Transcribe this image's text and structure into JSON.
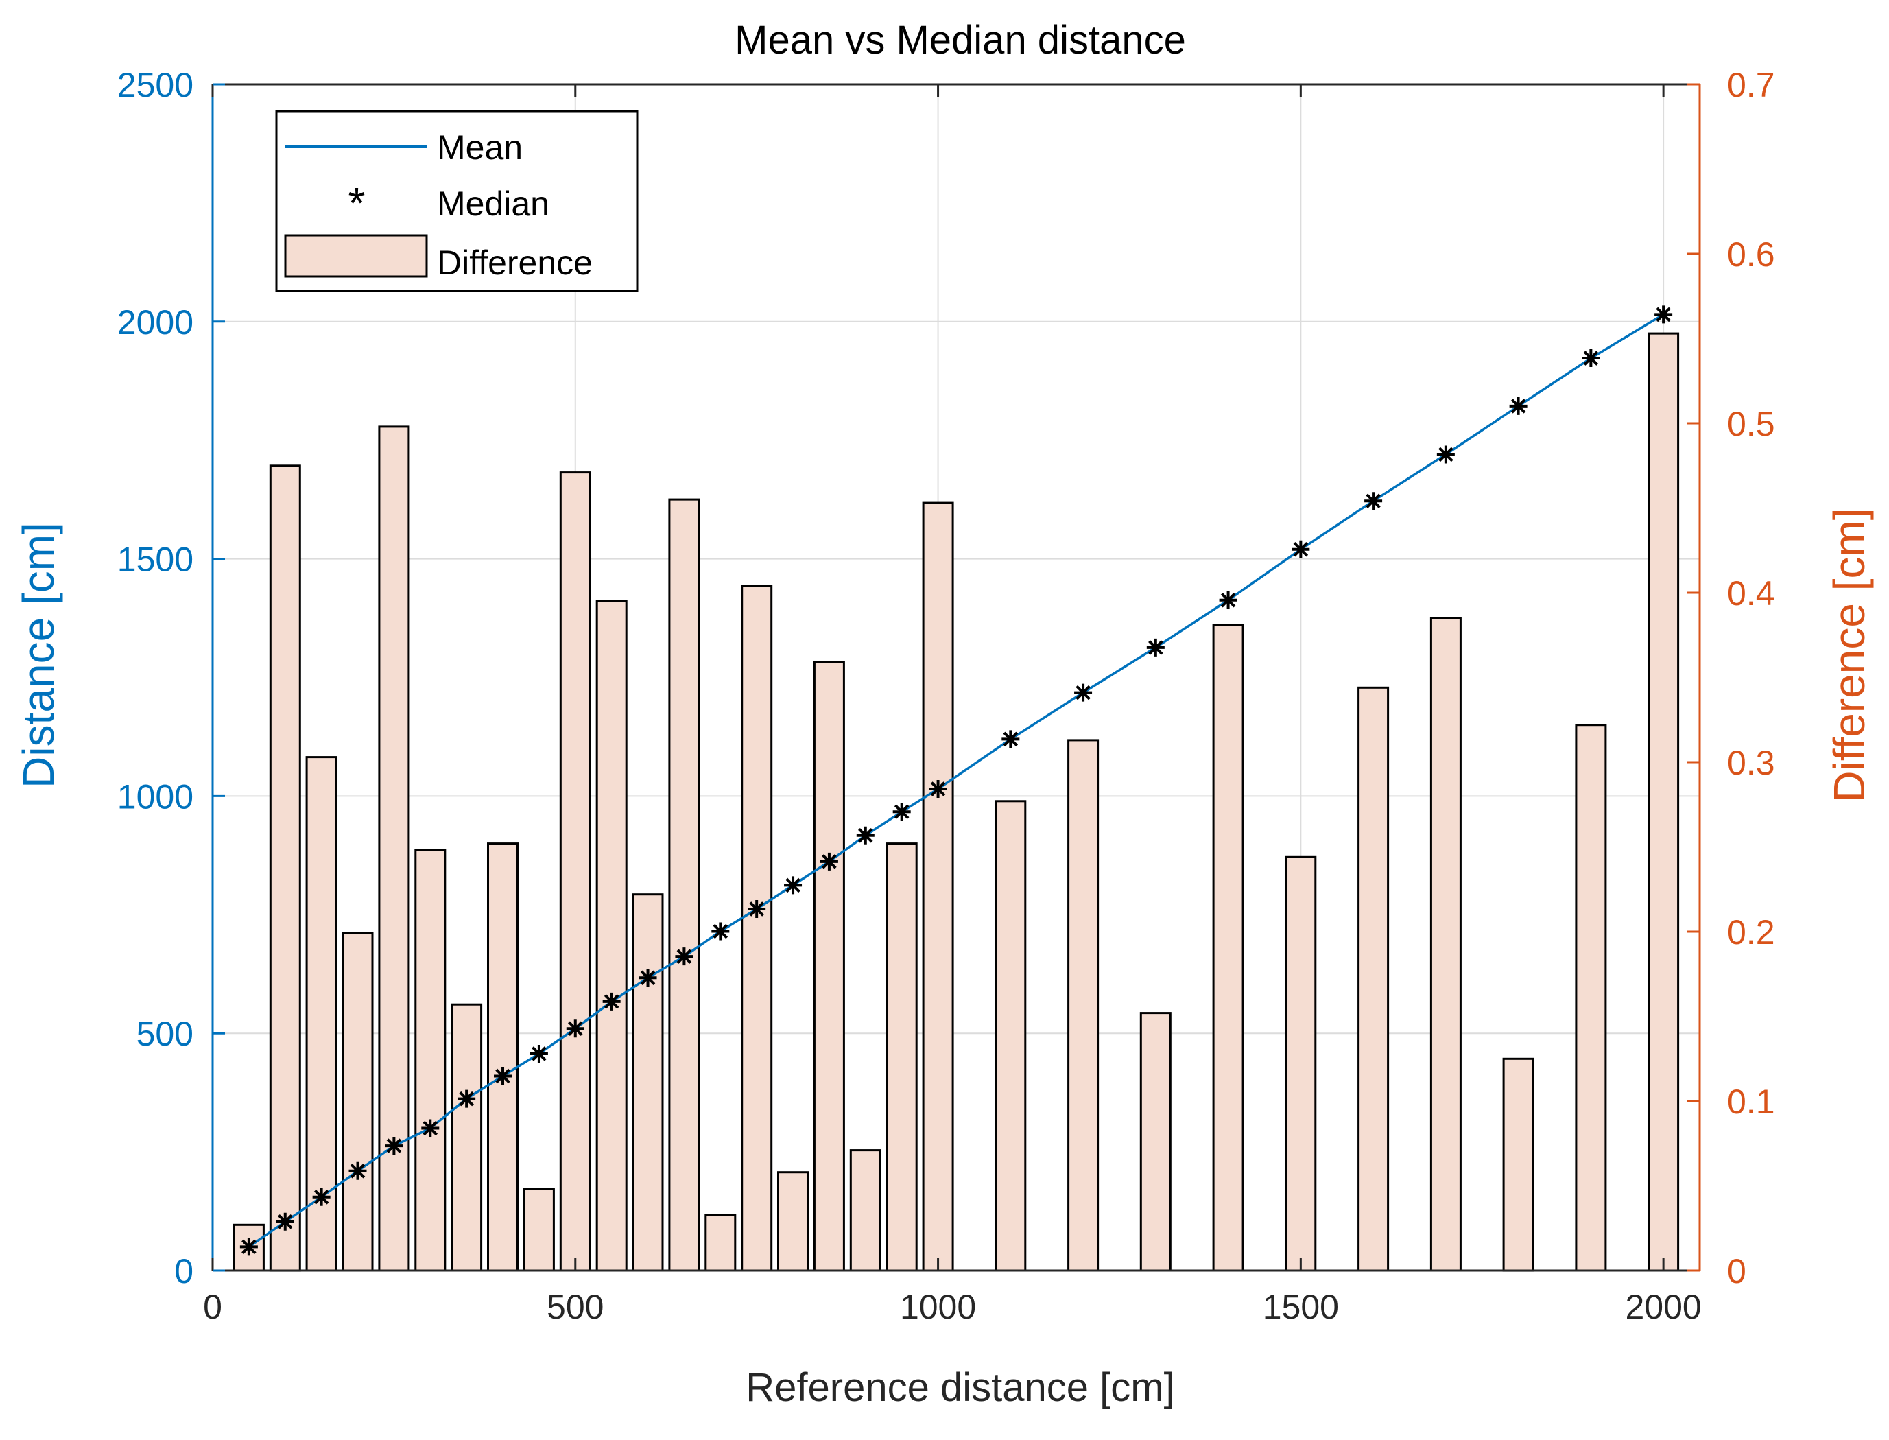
{
  "chart_data": {
    "type": "bar+line",
    "title": "Mean vs Median distance",
    "xlabel": "Reference distance [cm]",
    "ylabel_left": "Distance [cm]",
    "ylabel_right": "Difference [cm]",
    "xlim": [
      0,
      2050
    ],
    "ylim_left": [
      0,
      2500
    ],
    "ylim_right": [
      0,
      0.7
    ],
    "x_ticks": [
      0,
      500,
      1000,
      1500,
      2000
    ],
    "y_ticks_left": [
      0,
      500,
      1000,
      1500,
      2000,
      2500
    ],
    "y_ticks_right": [
      0,
      0.1,
      0.2,
      0.3,
      0.4,
      0.5,
      0.6,
      0.7
    ],
    "x_tick_labels": [
      "0",
      "500",
      "1000",
      "1500",
      "2000"
    ],
    "y_tick_labels_left": [
      "0",
      "500",
      "1000",
      "1500",
      "2000",
      "2500"
    ],
    "y_tick_labels_right": [
      "0",
      "0.1",
      "0.2",
      "0.3",
      "0.4",
      "0.5",
      "0.6",
      "0.7"
    ],
    "grid": true,
    "legend_position": "top-left",
    "legend": [
      "Mean",
      "Median",
      "Difference"
    ],
    "x": [
      50,
      100,
      150,
      200,
      250,
      300,
      350,
      400,
      450,
      500,
      550,
      600,
      650,
      700,
      750,
      800,
      850,
      900,
      950,
      1000,
      1100,
      1200,
      1300,
      1400,
      1500,
      1600,
      1700,
      1800,
      1900,
      2000
    ],
    "series": [
      {
        "name": "Mean",
        "axis": "left",
        "kind": "line",
        "values": [
          50,
          103,
          155,
          210,
          263,
          300,
          362,
          410,
          457,
          510,
          567,
          617,
          662,
          715,
          762,
          812,
          862,
          917,
          967,
          1015,
          1120,
          1218,
          1313,
          1413,
          1520,
          1622,
          1720,
          1822,
          1923,
          2015
        ]
      },
      {
        "name": "Median",
        "axis": "left",
        "kind": "scatter",
        "values": [
          50,
          103,
          155,
          210,
          263,
          300,
          362,
          410,
          457,
          510,
          567,
          617,
          662,
          715,
          762,
          812,
          862,
          917,
          967,
          1015,
          1120,
          1218,
          1313,
          1413,
          1520,
          1622,
          1720,
          1822,
          1923,
          2015
        ]
      },
      {
        "name": "Difference",
        "axis": "right",
        "kind": "bar",
        "values": [
          0.027,
          0.475,
          0.303,
          0.199,
          0.498,
          0.248,
          0.157,
          0.252,
          0.048,
          0.471,
          0.395,
          0.222,
          0.455,
          0.033,
          0.404,
          0.058,
          0.359,
          0.071,
          0.252,
          0.453,
          0.277,
          0.313,
          0.152,
          0.381,
          0.244,
          0.344,
          0.385,
          0.125,
          0.322,
          0.553
        ]
      }
    ]
  },
  "colors": {
    "mean_line": "#0072BD",
    "left_axis": "#0072BD",
    "right_axis": "#D95319",
    "bar_fill": "#F5DDD2",
    "bar_edge": "#000000",
    "grid": "#DCDCDC",
    "axis": "#262626"
  }
}
